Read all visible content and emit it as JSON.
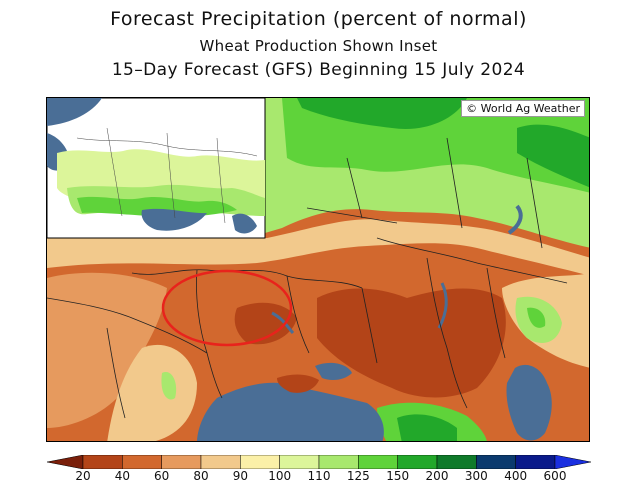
{
  "title": {
    "line1": "Forecast Precipitation (percent of normal)",
    "line2": "Wheat Production Shown Inset",
    "line3": "15–Day Forecast (GFS) Beginning 15 July 2024"
  },
  "credit": "© World Ag Weather",
  "legend": {
    "labels": [
      "20",
      "40",
      "60",
      "80",
      "90",
      "100",
      "110",
      "125",
      "150",
      "200",
      "300",
      "400",
      "600"
    ],
    "colors": [
      "#7a1f0a",
      "#b34418",
      "#d2682e",
      "#e69a5e",
      "#f2c98c",
      "#fbf0a8",
      "#dcf59a",
      "#a8e86e",
      "#5fd33a",
      "#22a82a",
      "#0f7a2a",
      "#0b3a6e",
      "#0a1a8a",
      "#1a2fe0"
    ]
  },
  "map_colors": {
    "water": "#4a6e96",
    "very_dry": "#b34418",
    "dry": "#d2682e",
    "below": "#e69a5e",
    "slightly_below": "#f2c98c",
    "near": "#fbf0a8",
    "above": "#a8e86e",
    "wet": "#5fd33a",
    "very_wet": "#22a82a",
    "highlight_circle": "#e8231c"
  }
}
